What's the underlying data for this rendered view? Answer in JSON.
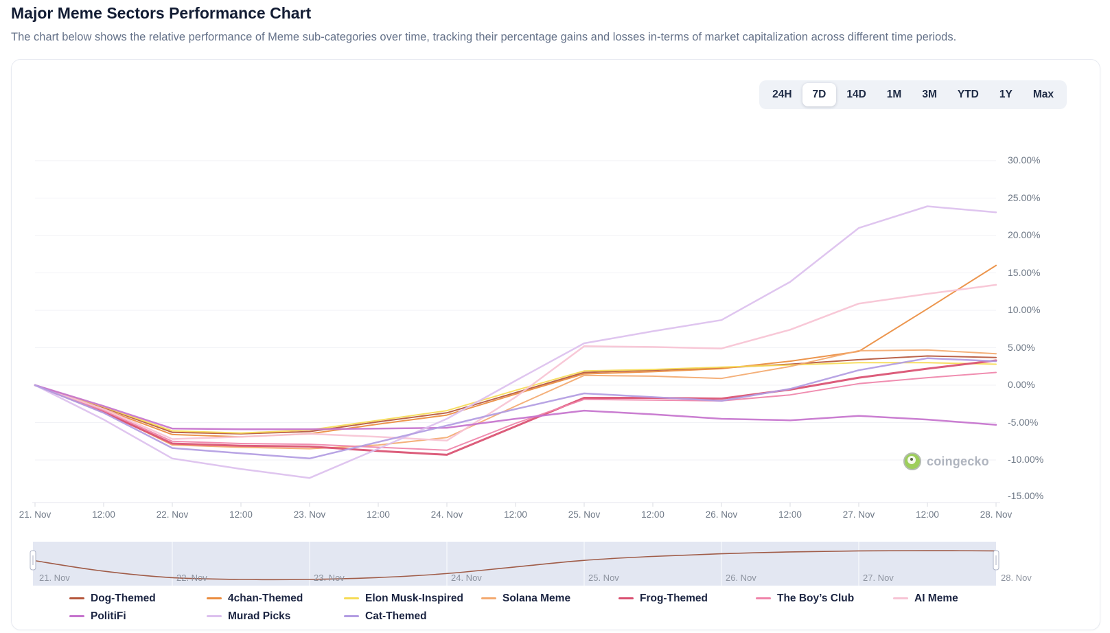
{
  "page": {
    "title": "Major Meme Sectors Performance Chart",
    "subtitle": "The chart below shows the relative performance of Meme sub-categories over time, tracking their percentage gains and losses in-terms of market capitalization across different time periods."
  },
  "toolbar": {
    "ranges": [
      "24H",
      "7D",
      "14D",
      "1M",
      "3M",
      "YTD",
      "1Y",
      "Max"
    ],
    "active": "7D"
  },
  "watermark": {
    "label": "coingecko"
  },
  "chart_data": {
    "type": "line",
    "title": "Major Meme Sectors Performance Chart",
    "x_labels": [
      "21. Nov",
      "12:00",
      "22. Nov",
      "12:00",
      "23. Nov",
      "12:00",
      "24. Nov",
      "12:00",
      "25. Nov",
      "12:00",
      "26. Nov",
      "12:00",
      "27. Nov",
      "12:00",
      "28. Nov"
    ],
    "y_unit": "%",
    "y_ticks": [
      {
        "value": 30,
        "label": "30.00%"
      },
      {
        "value": 25,
        "label": "25.00%"
      },
      {
        "value": 20,
        "label": "20.00%"
      },
      {
        "value": 15,
        "label": "15.00%"
      },
      {
        "value": 10,
        "label": "10.00%"
      },
      {
        "value": 5,
        "label": "5.00%"
      },
      {
        "value": 0,
        "label": "0.00%"
      },
      {
        "value": -5,
        "label": "-5.00%"
      },
      {
        "value": -10,
        "label": "-10.00%"
      },
      {
        "value": -15,
        "label": "-15.00%"
      }
    ],
    "ylim": [
      -15.5,
      30
    ],
    "grid": "horizontal",
    "legend_position": "bottom",
    "series": [
      {
        "name": "Dog-Themed",
        "id": "dog-themed",
        "color": "#b5563b",
        "width": 2,
        "values": [
          0,
          -3.0,
          -6.3,
          -6.5,
          -6.2,
          -4.9,
          -3.7,
          -1.0,
          1.7,
          2.0,
          2.3,
          2.8,
          3.4,
          3.9,
          3.7
        ]
      },
      {
        "name": "4chan-Themed",
        "id": "4chan-themed",
        "color": "#ea8c3e",
        "width": 2,
        "values": [
          0,
          -3.2,
          -6.6,
          -6.9,
          -6.5,
          -5.2,
          -4.0,
          -1.2,
          1.5,
          1.8,
          2.2,
          3.2,
          4.5,
          10.2,
          16.0
        ]
      },
      {
        "name": "Elon Musk-Inspired",
        "id": "elon-musk-inspired",
        "color": "#f6db55",
        "width": 2,
        "values": [
          0,
          -2.9,
          -6.1,
          -6.4,
          -6.0,
          -4.7,
          -3.4,
          -0.7,
          1.9,
          2.1,
          2.4,
          2.7,
          3.0,
          3.0,
          2.8
        ]
      },
      {
        "name": "Solana Meme",
        "id": "solana-meme",
        "color": "#f3a96f",
        "width": 2,
        "values": [
          0,
          -3.5,
          -8.0,
          -8.3,
          -8.5,
          -8.0,
          -7.0,
          -2.8,
          1.3,
          1.2,
          0.9,
          2.5,
          4.6,
          4.7,
          4.2
        ]
      },
      {
        "name": "Frog-Themed",
        "id": "frog-themed",
        "color": "#d94f70",
        "width": 3,
        "values": [
          0,
          -3.6,
          -7.8,
          -8.1,
          -8.2,
          -8.8,
          -9.3,
          -5.5,
          -1.7,
          -1.7,
          -1.8,
          -0.6,
          1.0,
          2.2,
          3.3
        ]
      },
      {
        "name": "The Boy’s Club",
        "id": "the-boys-club",
        "color": "#ef83a9",
        "width": 2,
        "values": [
          0,
          -3.4,
          -7.5,
          -7.8,
          -7.9,
          -8.3,
          -8.7,
          -5.1,
          -1.9,
          -2.0,
          -2.1,
          -1.3,
          0.2,
          1.0,
          1.7
        ]
      },
      {
        "name": "AI Meme",
        "id": "ai-meme",
        "color": "#f7c3d4",
        "width": 2.5,
        "values": [
          0,
          -3.2,
          -7.2,
          -6.9,
          -6.5,
          -6.9,
          -7.4,
          -1.6,
          5.2,
          5.1,
          4.9,
          7.4,
          10.9,
          12.2,
          13.4
        ]
      },
      {
        "name": "PolitiFi",
        "id": "politifi",
        "color": "#c573cd",
        "width": 2.5,
        "values": [
          0,
          -2.8,
          -5.8,
          -5.9,
          -5.9,
          -5.8,
          -5.7,
          -4.5,
          -3.4,
          -3.9,
          -4.5,
          -4.7,
          -4.1,
          -4.6,
          -5.3
        ]
      },
      {
        "name": "Murad Picks",
        "id": "murad-picks",
        "color": "#dcc0ee",
        "width": 2.5,
        "values": [
          0,
          -4.6,
          -9.8,
          -11.2,
          -12.4,
          -8.5,
          -4.5,
          0.6,
          5.6,
          7.2,
          8.7,
          13.8,
          21.0,
          23.9,
          23.1
        ]
      },
      {
        "name": "Cat-Themed",
        "id": "cat-themed",
        "color": "#b29ce2",
        "width": 2.5,
        "values": [
          0,
          -3.7,
          -8.4,
          -9.1,
          -9.8,
          -7.6,
          -5.4,
          -3.2,
          -1.1,
          -1.6,
          -2.1,
          -0.5,
          2.0,
          3.6,
          3.2
        ]
      }
    ],
    "navigator": {
      "dates": [
        "21. Nov",
        "22. Nov",
        "23. Nov",
        "24. Nov",
        "25. Nov",
        "26. Nov",
        "27. Nov",
        "28. Nov"
      ],
      "line_color": "#a05c48",
      "values": [
        0,
        -4.0,
        -6.5,
        -7.2,
        -7.2,
        -6.5,
        -5.0,
        -2.5,
        0,
        1.5,
        2.5,
        3.2,
        3.6,
        3.7,
        3.6
      ]
    }
  }
}
